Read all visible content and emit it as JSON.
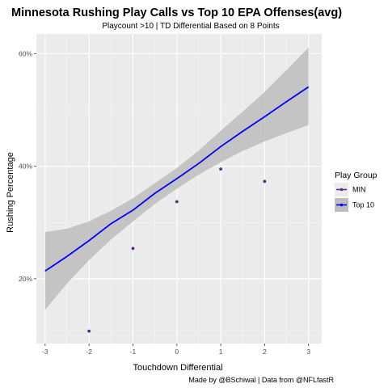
{
  "chart_data": {
    "type": "scatter",
    "title": "Minnesota Rushing Play Calls vs Top 10 EPA Offenses(avg)",
    "subtitle": "Playcount >10 | TD Differential Based on 8 Points",
    "caption": "Made by @BSchiwal | Data from @NFLfastR",
    "xlabel": "Touchdown Differential",
    "ylabel": "Rushing Percentage",
    "xlim": [
      -3.2,
      3.3
    ],
    "ylim": [
      0.085,
      0.635
    ],
    "x_ticks": [
      -3,
      -2,
      -1,
      0,
      1,
      2,
      3
    ],
    "x_tick_labels": [
      "-3",
      "-2",
      "-1",
      "0",
      "1",
      "2",
      "3"
    ],
    "y_ticks": [
      0.2,
      0.4,
      0.6
    ],
    "y_tick_labels": [
      "20%",
      "40%",
      "60%"
    ],
    "legend": {
      "title": "Play Group",
      "position": "right",
      "entries": [
        "MIN",
        "Top 10"
      ]
    },
    "series": [
      {
        "name": "MIN",
        "kind": "points",
        "color": "#5b2a86",
        "x": [
          -2,
          -1,
          0,
          1,
          2
        ],
        "y": [
          0.107,
          0.254,
          0.337,
          0.395,
          0.373
        ]
      },
      {
        "name": "Top 10",
        "kind": "line",
        "color": "#0000ff",
        "x": [
          -3,
          -2.5,
          -2,
          -1.5,
          -1,
          -0.5,
          0,
          0.5,
          1,
          1.5,
          2,
          2.5,
          3
        ],
        "y": [
          0.214,
          0.24,
          0.268,
          0.298,
          0.322,
          0.352,
          0.378,
          0.405,
          0.435,
          0.462,
          0.488,
          0.515,
          0.541
        ],
        "ribbon": {
          "color": "#bdbdbd",
          "lower": [
            0.145,
            0.192,
            0.233,
            0.27,
            0.302,
            0.333,
            0.36,
            0.385,
            0.407,
            0.427,
            0.444,
            0.459,
            0.473
          ],
          "upper": [
            0.283,
            0.289,
            0.302,
            0.321,
            0.343,
            0.37,
            0.397,
            0.428,
            0.463,
            0.497,
            0.532,
            0.571,
            0.611
          ]
        }
      }
    ],
    "colors": {
      "panel_bg": "#ebebeb",
      "grid_major": "#ffffff",
      "grid_minor": "#f5f5f5"
    }
  }
}
